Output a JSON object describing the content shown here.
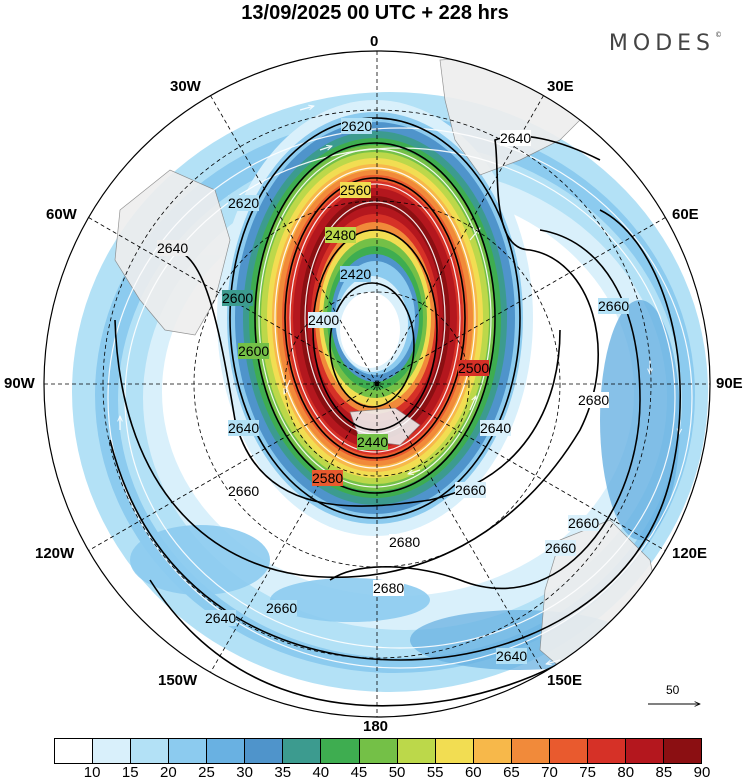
{
  "title": "13/09/2025  00 UTC  + 228 hrs",
  "brand": {
    "name": "MODES",
    "mark": "©"
  },
  "longitude_labels": {
    "north": "0",
    "e30": "30E",
    "e60": "60E",
    "e90": "90E",
    "e120": "120E",
    "e150": "150E",
    "south": "180",
    "w150": "150W",
    "w120": "120W",
    "w90": "90W",
    "w60": "60W",
    "w30": "30W"
  },
  "contour_labels": [
    "2620",
    "2640",
    "2560",
    "2480",
    "2420",
    "2400",
    "2440",
    "2500",
    "2580",
    "2640",
    "2660",
    "2680",
    "2660",
    "2680",
    "2660",
    "2640",
    "2640",
    "2640",
    "2620",
    "2600",
    "2600",
    "2640",
    "2660",
    "2660",
    "2680",
    "2660"
  ],
  "reference_vector": {
    "label": "50"
  },
  "colorbar": {
    "ticks": [
      "10",
      "15",
      "20",
      "25",
      "30",
      "35",
      "40",
      "45",
      "50",
      "55",
      "60",
      "65",
      "70",
      "75",
      "80",
      "85",
      "90"
    ],
    "colors": [
      "#ffffff",
      "#d9f0fb",
      "#b3e1f6",
      "#8ccbef",
      "#69b1e2",
      "#4f94cb",
      "#3c9b8f",
      "#3ead50",
      "#74c047",
      "#bcd84a",
      "#f2dd52",
      "#f7b84a",
      "#f18a3a",
      "#e95a2e",
      "#d63127",
      "#b4171e",
      "#8b0f12"
    ]
  }
}
